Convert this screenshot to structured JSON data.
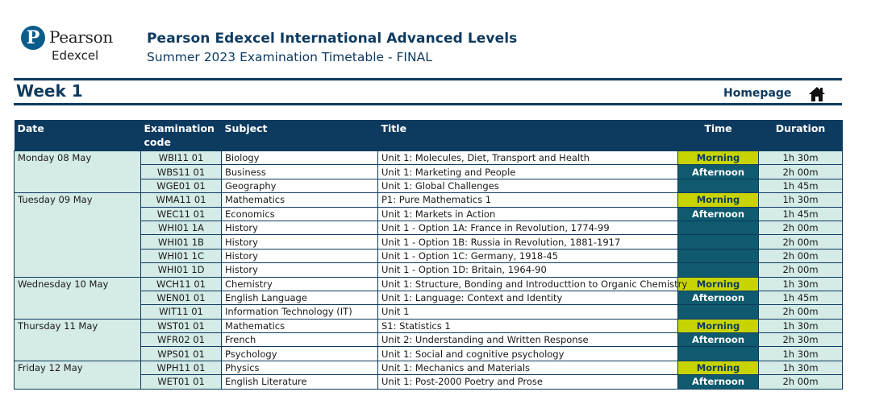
{
  "header": {
    "logo_name": "Pearson",
    "logo_sub": "Edexcel",
    "title": "Pearson Edexcel International Advanced Levels",
    "subtitle": "Summer 2023 Examination Timetable - FINAL"
  },
  "week": {
    "title": "Week 1",
    "homepage_label": "Homepage",
    "home_icon": "home-icon"
  },
  "table": {
    "headers": {
      "date": "Date",
      "code": "Examination code",
      "subject": "Subject",
      "title": "Title",
      "time": "Time",
      "duration": "Duration"
    },
    "days": [
      {
        "date": "Monday 08 May",
        "rows": [
          {
            "code": "WBI11 01",
            "subject": "Biology",
            "title": "Unit 1: Molecules, Diet, Transport and Health",
            "time": "Morning",
            "duration": "1h 30m"
          },
          {
            "code": "WBS11 01",
            "subject": "Business",
            "title": "Unit 1: Marketing and People",
            "time": "Afternoon",
            "duration": "2h 00m"
          },
          {
            "code": "WGE01 01",
            "subject": "Geography",
            "title": "Unit 1: Global Challenges",
            "time": "",
            "duration": "1h 45m"
          }
        ]
      },
      {
        "date": "Tuesday 09 May",
        "rows": [
          {
            "code": "WMA11 01",
            "subject": "Mathematics",
            "title": "P1: Pure Mathematics 1",
            "time": "Morning",
            "duration": "1h 30m"
          },
          {
            "code": "WEC11 01",
            "subject": "Economics",
            "title": "Unit 1: Markets in Action",
            "time": "Afternoon",
            "duration": "1h 45m"
          },
          {
            "code": "WHI01 1A",
            "subject": "History",
            "title": "Unit 1 - Option 1A: France in Revolution, 1774-99",
            "time": "",
            "duration": "2h 00m"
          },
          {
            "code": "WHI01 1B",
            "subject": "History",
            "title": "Unit 1 - Option 1B: Russia in Revolution, 1881-1917",
            "time": "",
            "duration": "2h 00m"
          },
          {
            "code": "WHI01 1C",
            "subject": "History",
            "title": "Unit 1 - Option 1C: Germany, 1918-45",
            "time": "",
            "duration": "2h 00m"
          },
          {
            "code": "WHI01 1D",
            "subject": "History",
            "title": "Unit 1 - Option 1D: Britain, 1964-90",
            "time": "",
            "duration": "2h 00m"
          }
        ]
      },
      {
        "date": "Wednesday 10 May",
        "rows": [
          {
            "code": "WCH11 01",
            "subject": "Chemistry",
            "title": "Unit 1: Structure, Bonding and Introducttion to Organic Chemistry",
            "time": "Morning",
            "duration": "1h 30m"
          },
          {
            "code": "WEN01 01",
            "subject": "English Language",
            "title": "Unit 1: Language: Context and Identity",
            "time": "Afternoon",
            "duration": "1h 45m"
          },
          {
            "code": "WIT11 01",
            "subject": "Information Technology (IT)",
            "title": "Unit 1",
            "time": "",
            "duration": "2h 00m"
          }
        ]
      },
      {
        "date": "Thursday 11 May",
        "rows": [
          {
            "code": "WST01 01",
            "subject": "Mathematics",
            "title": "S1: Statistics 1",
            "time": "Morning",
            "duration": "1h 30m"
          },
          {
            "code": "WFR02 01",
            "subject": "French",
            "title": "Unit 2: Understanding and Written Response",
            "time": "Afternoon",
            "duration": "2h 30m"
          },
          {
            "code": "WPS01 01",
            "subject": "Psychology",
            "title": "Unit 1: Social and cognitive psychology",
            "time": "",
            "duration": "1h 30m"
          }
        ]
      },
      {
        "date": "Friday 12 May",
        "rows": [
          {
            "code": "WPH11 01",
            "subject": "Physics",
            "title": "Unit 1: Mechanics and Materials",
            "time": "Morning",
            "duration": "1h 30m"
          },
          {
            "code": "WET01 01",
            "subject": "English Literature",
            "title": "Unit 1: Post-2000 Poetry and Prose",
            "time": "Afternoon",
            "duration": "2h 00m"
          }
        ]
      }
    ]
  },
  "colors": {
    "navy": "#0d3a5f",
    "morning": "#c8d400",
    "afternoon": "#0f5a6f",
    "mint": "#d4ebe6"
  }
}
